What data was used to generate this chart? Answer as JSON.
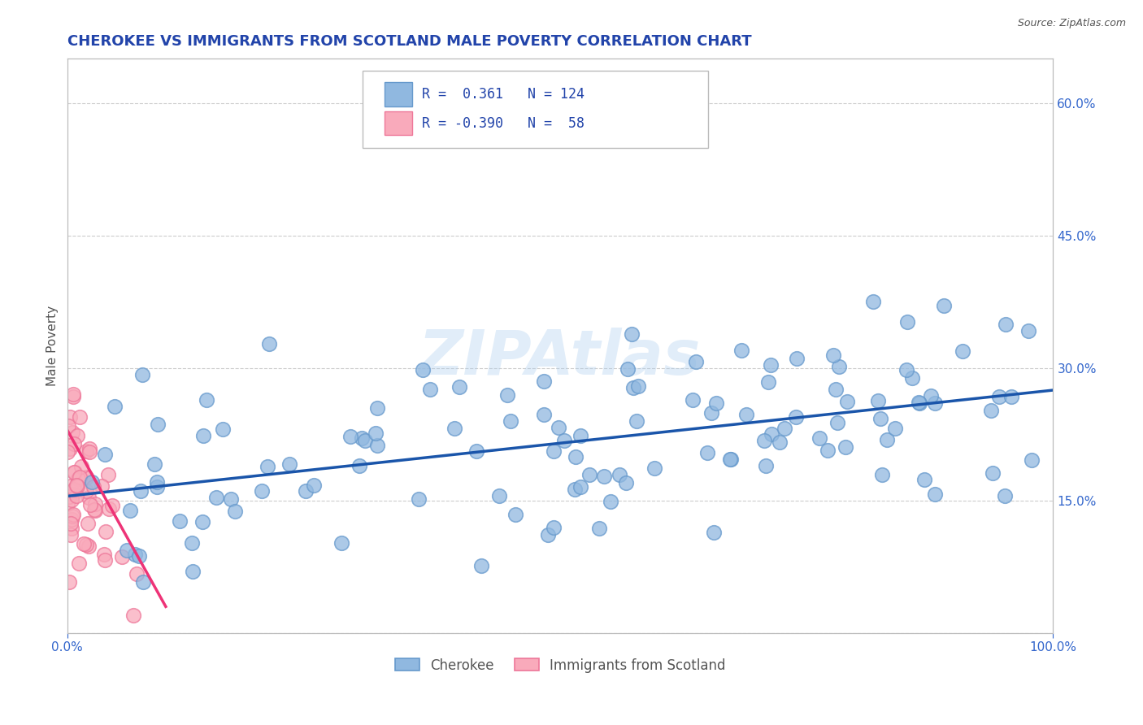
{
  "title": "CHEROKEE VS IMMIGRANTS FROM SCOTLAND MALE POVERTY CORRELATION CHART",
  "source_text": "Source: ZipAtlas.com",
  "ylabel": "Male Poverty",
  "xlim": [
    0,
    100
  ],
  "ylim": [
    0,
    65
  ],
  "yticks": [
    0,
    15,
    30,
    45,
    60
  ],
  "right_ytick_labels": [
    "15.0%",
    "30.0%",
    "45.0%",
    "60.0%"
  ],
  "right_ytick_vals": [
    15,
    30,
    45,
    60
  ],
  "xtick_vals": [
    0,
    100
  ],
  "xtick_labels": [
    "0.0%",
    "100.0%"
  ],
  "blue_color": "#90B8E0",
  "blue_edge_color": "#6699CC",
  "pink_color": "#F9AABB",
  "pink_edge_color": "#EE7799",
  "blue_line_color": "#1A55AA",
  "pink_line_color": "#EE3377",
  "background_color": "#FFFFFF",
  "grid_color": "#CCCCCC",
  "watermark": "ZIPAtlas",
  "axis_tick_color": "#3366CC",
  "title_color": "#2244AA",
  "label_color": "#555555",
  "legend_text_color": "#2244AA",
  "legend_r1": "R =  0.361",
  "legend_n1": "N = 124",
  "legend_r2": "R = -0.390",
  "legend_n2": "N =  58",
  "blue_trend_x0": 0,
  "blue_trend_x1": 100,
  "blue_trend_y0": 15.5,
  "blue_trend_y1": 27.5,
  "pink_trend_x0": 0,
  "pink_trend_x1": 10,
  "pink_trend_y0": 23,
  "pink_trend_y1": 3,
  "title_fontsize": 13,
  "source_fontsize": 9,
  "axis_label_fontsize": 11,
  "tick_fontsize": 11,
  "legend_fontsize": 12,
  "watermark_fontsize": 55
}
